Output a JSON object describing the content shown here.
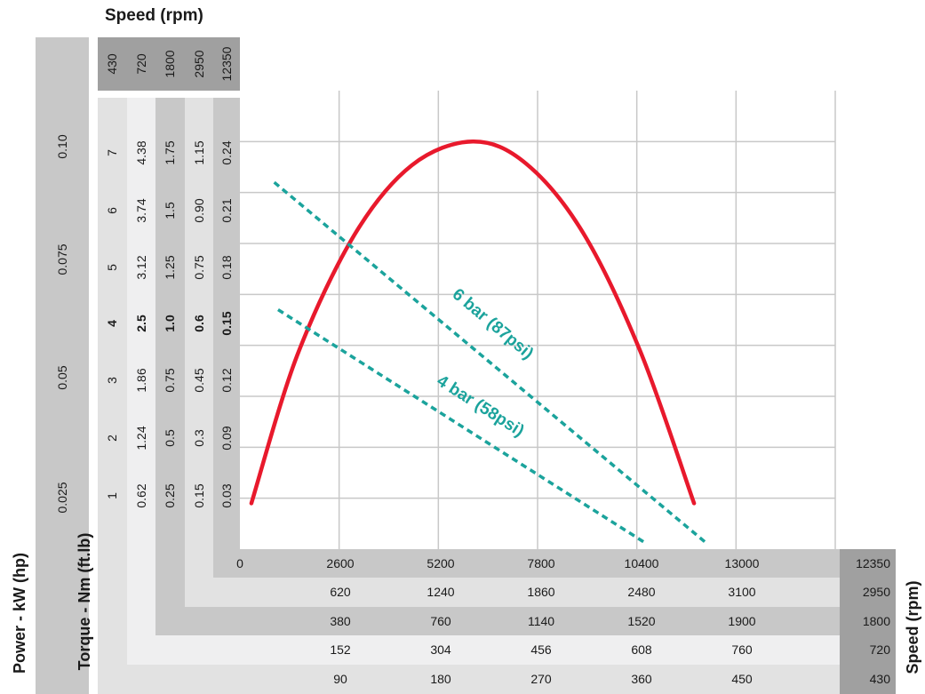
{
  "title": "Speed (rpm)",
  "ylabel_power": "Power - kW (hp)",
  "ylabel_torque": "Torque - Nm (ft.lb)",
  "right_label": "Speed (rpm)",
  "colors": {
    "curve": "#e8192c",
    "pressure": "#1ba39c",
    "grid": "#c8c8c8",
    "band_dark": "#a0a0a0",
    "band_mid": "#c9c9c9",
    "band_light": "#e4e4e4",
    "band_pale": "#efeff0"
  },
  "top_speeds": [
    "430",
    "720",
    "1800",
    "2950",
    "12350"
  ],
  "power_ticks": [
    "0.025",
    "0.05",
    "0.075",
    "0.10"
  ],
  "torque_columns": [
    {
      "values": [
        "1",
        "2",
        "3",
        "4",
        "5",
        "6",
        "7"
      ]
    },
    {
      "values": [
        "0.62",
        "1.24",
        "1.86",
        "2.5",
        "3.12",
        "3.74",
        "4.38"
      ]
    },
    {
      "values": [
        "0.25",
        "0.5",
        "0.75",
        "1.0",
        "1.25",
        "1.5",
        "1.75"
      ]
    },
    {
      "values": [
        "0.15",
        "0.3",
        "0.45",
        "0.6",
        "0.75",
        "0.90",
        "1.15"
      ]
    },
    {
      "values": [
        "0.03",
        "0.09",
        "0.12",
        "0.15",
        "0.18",
        "0.21",
        "0.24"
      ]
    }
  ],
  "bottom_rows": [
    {
      "speed": "12350",
      "values": [
        "0",
        "2600",
        "5200",
        "7800",
        "10400",
        "13000"
      ]
    },
    {
      "speed": "2950",
      "values": [
        "620",
        "1240",
        "1860",
        "2480",
        "3100"
      ]
    },
    {
      "speed": "1800",
      "values": [
        "380",
        "760",
        "1140",
        "1520",
        "1900"
      ]
    },
    {
      "speed": "720",
      "values": [
        "152",
        "304",
        "456",
        "608",
        "760"
      ]
    },
    {
      "speed": "430",
      "values": [
        "90",
        "180",
        "270",
        "360",
        "450"
      ]
    }
  ],
  "chart_data": {
    "type": "line",
    "title": "Speed (rpm)",
    "xlabel": "Speed (rpm)",
    "ylabel": "Power - kW (hp)",
    "xlim": [
      0,
      15600
    ],
    "ylim": [
      0,
      0.27
    ],
    "series": [
      {
        "name": "",
        "x": [
          300,
          1500,
          3000,
          4500,
          6100,
          7500,
          9000,
          10500,
          11900
        ],
        "y": [
          0.027,
          0.114,
          0.185,
          0.226,
          0.24,
          0.227,
          0.186,
          0.116,
          0.027
        ]
      },
      {
        "name": "6 bar (87psi)",
        "x": [
          900,
          12200
        ],
        "y": [
          0.216,
          0.004
        ]
      },
      {
        "name": "4 bar (58psi)",
        "x": [
          1000,
          10600
        ],
        "y": [
          0.141,
          0.004
        ]
      }
    ]
  }
}
